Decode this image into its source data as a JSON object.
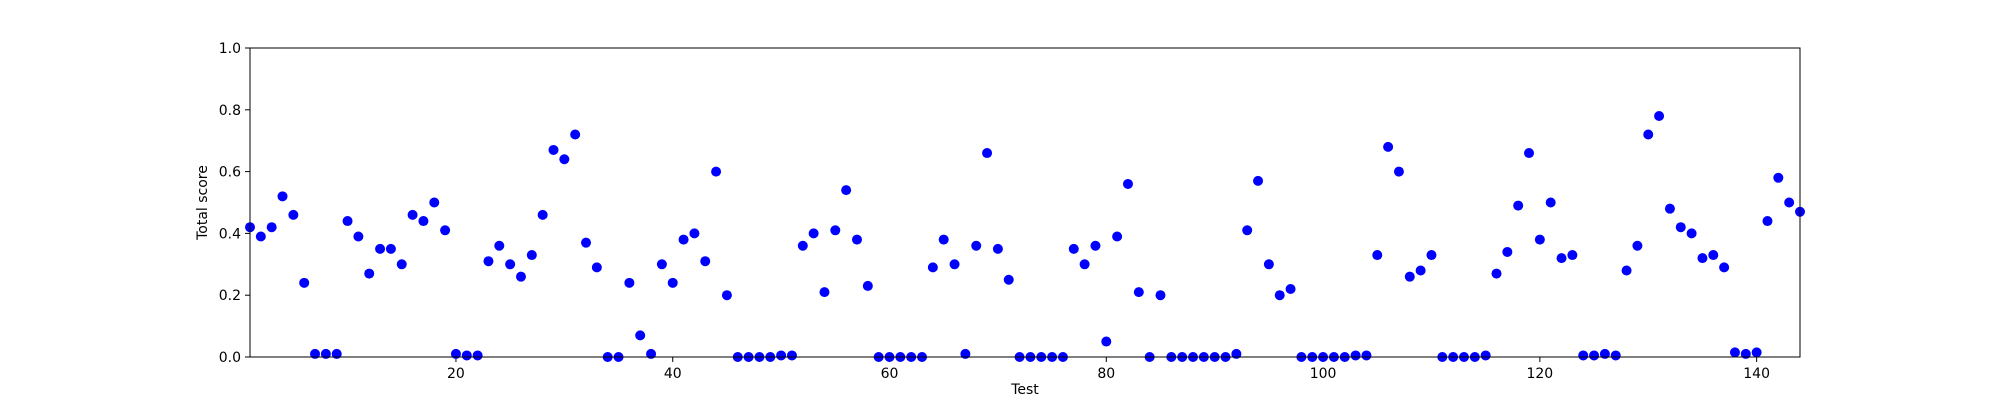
{
  "colors": {
    "marker": "#0000ff",
    "axis": "#000000",
    "background": "#ffffff"
  },
  "chart_data": {
    "type": "scatter",
    "title": "",
    "xlabel": "Test",
    "ylabel": "Total score",
    "xlim": [
      1,
      144
    ],
    "ylim": [
      0.0,
      1.0
    ],
    "grid": false,
    "legend": "none",
    "x_ticks": [
      20,
      40,
      60,
      80,
      100,
      120,
      140
    ],
    "y_ticks": [
      "0.0",
      "0.2",
      "0.4",
      "0.6",
      "0.8",
      "1.0"
    ],
    "series": [
      {
        "x": [
          1,
          2,
          3,
          4,
          5,
          6,
          7,
          8,
          9,
          10,
          11,
          12,
          13,
          14,
          15,
          16,
          17,
          18,
          19,
          20,
          21,
          22,
          23,
          24,
          25,
          26,
          27,
          28,
          29,
          30,
          31,
          32,
          33,
          34,
          35,
          36,
          37,
          38,
          39,
          40,
          41,
          42,
          43,
          44,
          45,
          46,
          47,
          48,
          49,
          50,
          51,
          52,
          53,
          54,
          55,
          56,
          57,
          58,
          59,
          60,
          61,
          62,
          63,
          64,
          65,
          66,
          67,
          68,
          69,
          70,
          71,
          72,
          73,
          74,
          75,
          76,
          77,
          78,
          79,
          80,
          81,
          82,
          83,
          84,
          85,
          86,
          87,
          88,
          89,
          90,
          91,
          92,
          93,
          94,
          95,
          96,
          97,
          98,
          99,
          100,
          101,
          102,
          103,
          104,
          105,
          106,
          107,
          108,
          109,
          110,
          111,
          112,
          113,
          114,
          115,
          116,
          117,
          118,
          119,
          120,
          121,
          122,
          123,
          124,
          125,
          126,
          127,
          128,
          129,
          130,
          131,
          132,
          133,
          134,
          135,
          136,
          137,
          138,
          139,
          140,
          141,
          142,
          143,
          144
        ],
        "y": [
          0.42,
          0.39,
          0.42,
          0.52,
          0.46,
          0.24,
          0.01,
          0.01,
          0.01,
          0.44,
          0.39,
          0.27,
          0.35,
          0.35,
          0.3,
          0.46,
          0.44,
          0.5,
          0.41,
          0.01,
          0.005,
          0.005,
          0.31,
          0.36,
          0.3,
          0.26,
          0.33,
          0.46,
          0.67,
          0.64,
          0.72,
          0.37,
          0.29,
          0.0,
          0.0,
          0.24,
          0.07,
          0.01,
          0.3,
          0.24,
          0.38,
          0.4,
          0.31,
          0.6,
          0.2,
          0.0,
          0.0,
          0.0,
          0.0,
          0.005,
          0.005,
          0.36,
          0.4,
          0.21,
          0.41,
          0.54,
          0.38,
          0.23,
          0.0,
          0.0,
          0.0,
          0.0,
          0.0,
          0.29,
          0.38,
          0.3,
          0.01,
          0.36,
          0.66,
          0.35,
          0.25,
          0.0,
          0.0,
          0.0,
          0.0,
          0.0,
          0.35,
          0.3,
          0.36,
          0.05,
          0.39,
          0.56,
          0.21,
          0.0,
          0.2,
          0.0,
          0.0,
          0.0,
          0.0,
          0.0,
          0.0,
          0.01,
          0.41,
          0.57,
          0.3,
          0.2,
          0.22,
          0.0,
          0.0,
          0.0,
          0.0,
          0.0,
          0.005,
          0.005,
          0.33,
          0.68,
          0.6,
          0.26,
          0.28,
          0.33,
          0.0,
          0.0,
          0.0,
          0.0,
          0.005,
          0.27,
          0.34,
          0.49,
          0.66,
          0.38,
          0.5,
          0.32,
          0.33,
          0.005,
          0.005,
          0.01,
          0.005,
          0.28,
          0.36,
          0.72,
          0.78,
          0.48,
          0.42,
          0.4,
          0.32,
          0.33,
          0.29,
          0.015,
          0.01,
          0.015,
          0.44,
          0.58,
          0.5,
          0.47
        ]
      }
    ]
  }
}
